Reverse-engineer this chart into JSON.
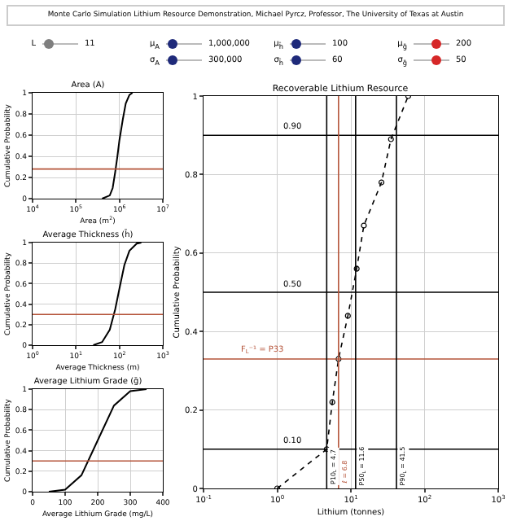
{
  "chart_data": [
    {
      "type": "other",
      "title": "Monte Carlo Simulation Lithium Resource Demonstration, Michael Pyrcz, Professor, The University of Texas at Austin",
      "annotations": [
        "L",
        "11",
        "μ$_{A}$",
        "1,000,000",
        "μ$_{h̄}$",
        "100",
        "μ$_{ḡ}$",
        "200",
        "σ$_{A}$",
        "300,000",
        "σ$_{h̄}$",
        "60",
        "σ$_{ḡ}$",
        "50"
      ]
    },
    {
      "type": "line",
      "title": "Area (A)",
      "xlabel": "Area (m$^{2}$)",
      "ylabel": "Cumulative Probability",
      "log": "x",
      "grid": true,
      "xlim": [
        10000,
        10000000
      ],
      "xticks": [
        {
          "value": 10000,
          "label": "10$^{4}$"
        },
        {
          "value": 100000,
          "label": "10$^{5}$"
        },
        {
          "value": 1000000,
          "label": "10$^{6}$"
        },
        {
          "value": 10000000,
          "label": "10$^{7}$"
        }
      ],
      "ylim": [
        0,
        1
      ],
      "yticks": [
        0,
        0.2,
        0.4,
        0.6,
        0.8,
        1
      ],
      "series": [
        {
          "color": "#000000",
          "x": [
            400000,
            600000,
            700000,
            800000,
            900000,
            1000000,
            1200000,
            1400000,
            1700000,
            2000000
          ],
          "values": [
            0,
            0.03,
            0.1,
            0.25,
            0.4,
            0.55,
            0.75,
            0.9,
            0.98,
            1
          ]
        }
      ],
      "ref_lines": [
        {
          "axis": "y",
          "value": 0.28,
          "color": "#b5543a"
        }
      ]
    },
    {
      "type": "line",
      "title": "Average Thickness (h̄)",
      "xlabel": "Average Thickness (m)",
      "ylabel": "Cumulative Probability",
      "log": "x",
      "grid": true,
      "xlim": [
        1,
        1000
      ],
      "xticks": [
        {
          "value": 1,
          "label": "10$^{0}$"
        },
        {
          "value": 10,
          "label": "10$^{1}$"
        },
        {
          "value": 100,
          "label": "10$^{2}$"
        },
        {
          "value": 1000,
          "label": "10$^{3}$"
        }
      ],
      "ylim": [
        0,
        1
      ],
      "yticks": [
        0,
        0.2,
        0.4,
        0.6,
        0.8,
        1
      ],
      "series": [
        {
          "color": "#000000",
          "x": [
            25,
            40,
            60,
            80,
            100,
            130,
            170,
            250,
            320
          ],
          "values": [
            0,
            0.03,
            0.15,
            0.35,
            0.55,
            0.78,
            0.92,
            0.99,
            1
          ]
        }
      ],
      "ref_lines": [
        {
          "axis": "y",
          "value": 0.3,
          "color": "#b5543a"
        }
      ]
    },
    {
      "type": "line",
      "title": "Average Lithium Grade (ḡ)",
      "xlabel": "Average Lithium Grade (mg/L)",
      "ylabel": "Cumulative Probability",
      "grid": true,
      "xlim": [
        0,
        400
      ],
      "xticks": [
        0,
        100,
        200,
        300,
        400
      ],
      "ylim": [
        0,
        1
      ],
      "yticks": [
        0,
        0.2,
        0.4,
        0.6,
        0.8,
        1
      ],
      "series": [
        {
          "color": "#000000",
          "x": [
            50,
            100,
            150,
            200,
            250,
            300,
            350
          ],
          "values": [
            0,
            0.02,
            0.16,
            0.5,
            0.84,
            0.98,
            1
          ]
        }
      ],
      "ref_lines": [
        {
          "axis": "y",
          "value": 0.3,
          "color": "#b5543a"
        }
      ]
    },
    {
      "type": "line",
      "title": "Recoverable Lithium Resource",
      "xlabel": "Lithium (tonnes)",
      "ylabel": "Cumulative Probability",
      "log": "x",
      "grid": true,
      "marker": "circle",
      "line_style": "dotted",
      "xlim": [
        0.1,
        1000
      ],
      "xticks": [
        {
          "value": 0.1,
          "label": "10$^{-1}$"
        },
        {
          "value": 1,
          "label": "10$^{0}$"
        },
        {
          "value": 10,
          "label": "10$^{1}$"
        },
        {
          "value": 100,
          "label": "10$^{2}$"
        },
        {
          "value": 1000,
          "label": "10$^{3}$"
        }
      ],
      "ylim": [
        0,
        1
      ],
      "yticks": [
        0,
        0.2,
        0.4,
        0.6,
        0.8,
        1
      ],
      "series": [
        {
          "color": "#000000",
          "x": [
            1,
            4.7,
            5.6,
            6.8,
            9.1,
            12,
            15,
            26,
            35,
            60
          ],
          "values": [
            0,
            0.1,
            0.22,
            0.33,
            0.44,
            0.56,
            0.67,
            0.78,
            0.89,
            1
          ]
        }
      ],
      "ref_lines": [
        {
          "axis": "y",
          "value": 0.1,
          "label": "0.10",
          "color": "#000000"
        },
        {
          "axis": "y",
          "value": 0.5,
          "label": "0.50",
          "color": "#000000"
        },
        {
          "axis": "y",
          "value": 0.9,
          "label": "0.90",
          "color": "#000000"
        },
        {
          "axis": "y",
          "value": 0.33,
          "label": "F$_{L}$⁻¹ = P33",
          "color": "#b5543a"
        },
        {
          "axis": "x",
          "value": 4.7,
          "label": "P10$_{L}$ = 4.7",
          "color": "#000000"
        },
        {
          "axis": "x",
          "value": 11.6,
          "label": "P50$_{L}$ = 11.6",
          "color": "#000000"
        },
        {
          "axis": "x",
          "value": 41.5,
          "label": "P90$_{L}$ = 41.5",
          "color": "#000000"
        },
        {
          "axis": "x",
          "value": 6.8,
          "label": "ℓ = 6.8",
          "color": "#b5543a"
        }
      ]
    }
  ]
}
